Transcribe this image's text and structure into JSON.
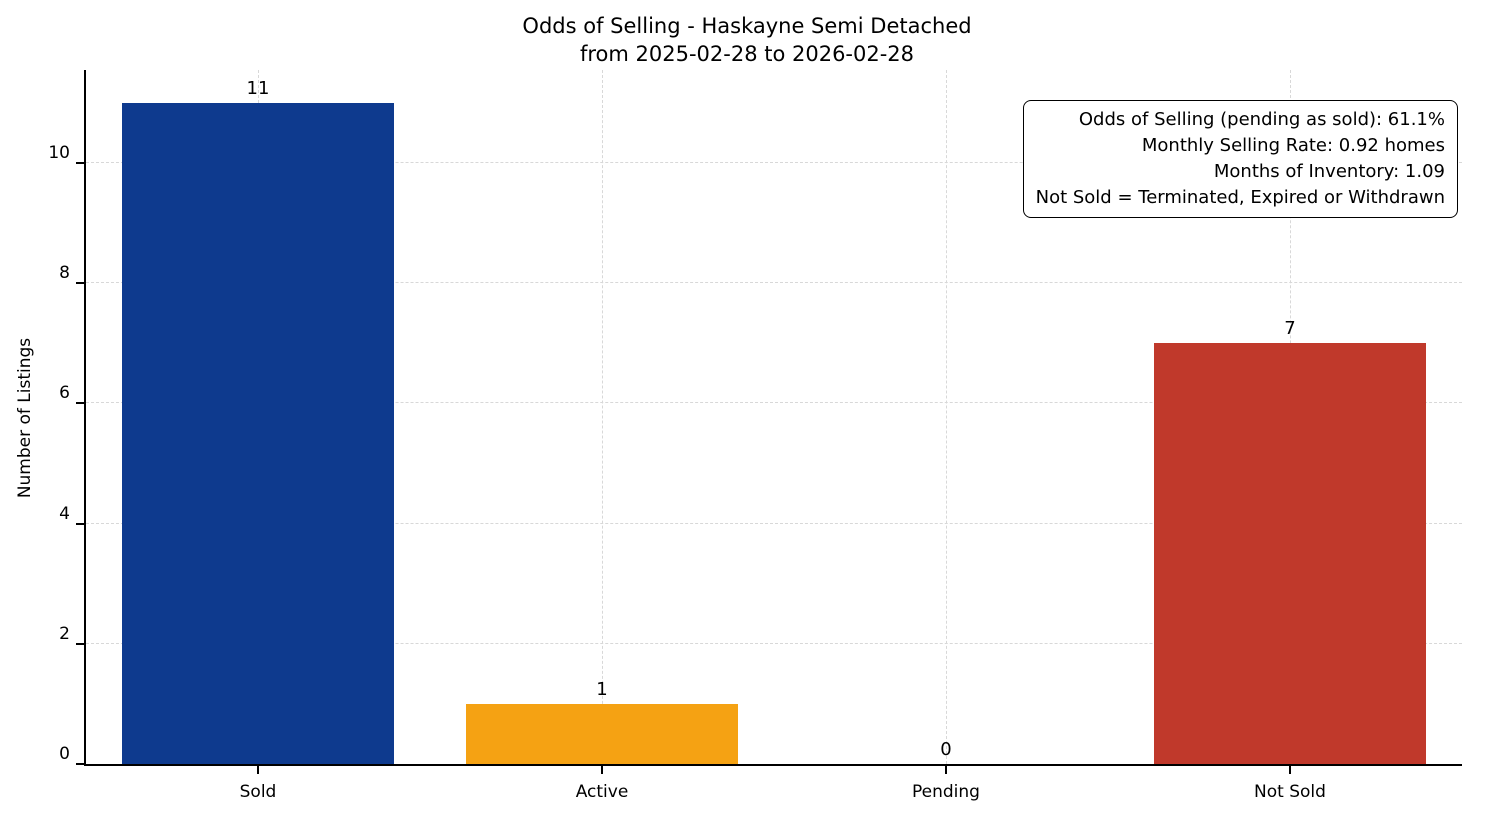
{
  "chart_data": {
    "type": "bar",
    "title_line1": "Odds of Selling - Haskayne Semi Detached",
    "title_line2": "from 2025-02-28 to 2026-02-28",
    "categories": [
      "Sold",
      "Active",
      "Pending",
      "Not Sold"
    ],
    "values": [
      11,
      1,
      0,
      7
    ],
    "value_labels": [
      "11",
      "1",
      "0",
      "7"
    ],
    "bar_colors": [
      "#0e3a8e",
      "#f5a213",
      "#808080",
      "#c0392b"
    ],
    "ylabel": "Number of Listings",
    "yticks": [
      0,
      2,
      4,
      6,
      8,
      10
    ],
    "ylim": [
      0,
      11.55
    ],
    "grid": "dashed-both-axes",
    "legend": "none",
    "annotation_lines": [
      "Odds of Selling (pending as sold): 61.1%",
      "Monthly Selling Rate: 0.92 homes",
      "Months of Inventory: 1.09",
      "Not Sold = Terminated, Expired or Withdrawn"
    ],
    "annotation_position": "top-right",
    "colors": {
      "sold": "#0e3a8e",
      "active": "#f5a213",
      "not_sold": "#c0392b",
      "grid": "#d8d8d8",
      "axis": "#000000"
    }
  }
}
